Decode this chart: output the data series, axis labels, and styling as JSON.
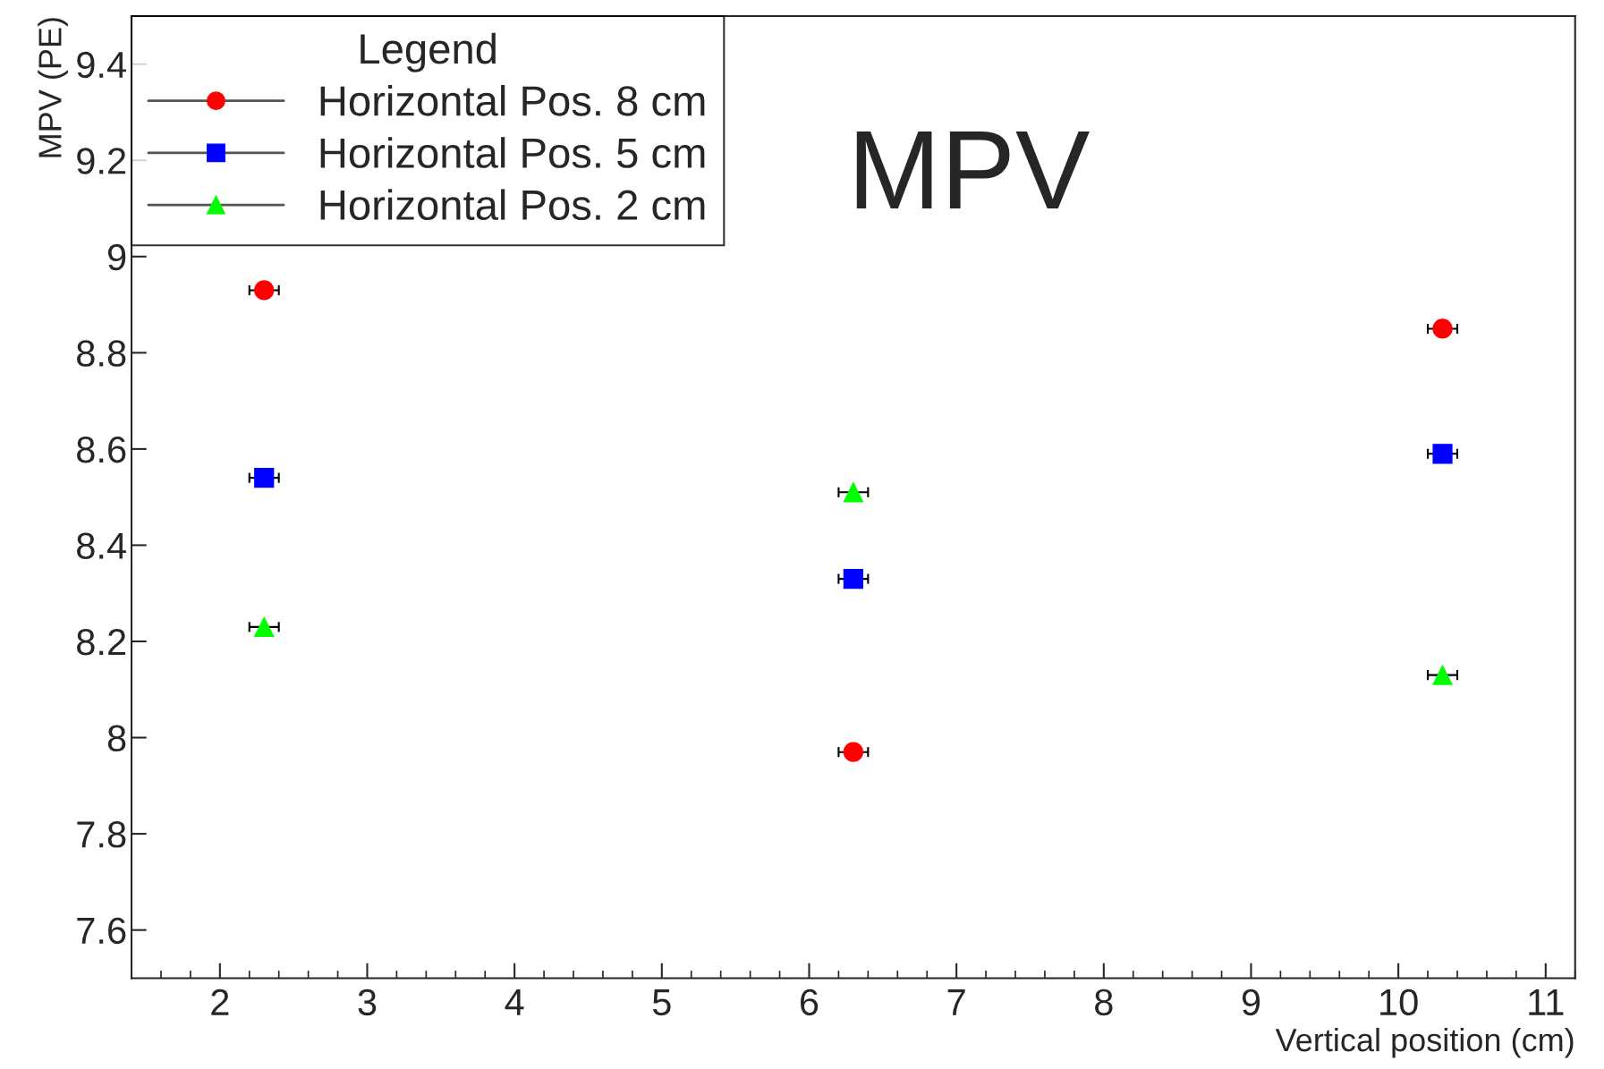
{
  "chart_data": {
    "type": "scatter",
    "xlabel": "Vertical position (cm)",
    "ylabel": "MPV (PE)",
    "legend_title": "Legend",
    "annotations": [
      "MPV"
    ],
    "xlim": [
      1.4,
      11.2
    ],
    "ylim": [
      7.5,
      9.5
    ],
    "xticks": [
      2,
      3,
      4,
      5,
      6,
      7,
      8,
      9,
      10,
      11
    ],
    "yticks": [
      7.6,
      7.8,
      8,
      8.2,
      8.4,
      8.6,
      8.8,
      9,
      9.2,
      9.4
    ],
    "legend": "top left",
    "grid": false,
    "x": [
      2.3,
      6.3,
      10.3
    ],
    "series": [
      {
        "name": "Horizontal Pos. 8 cm",
        "color": "#ff0000",
        "marker": "circle",
        "values": [
          8.93,
          7.97,
          8.85
        ],
        "xerrors": [
          0.1,
          0.1,
          0.1
        ]
      },
      {
        "name": "Horizontal Pos. 5 cm",
        "color": "#0000ff",
        "marker": "square",
        "values": [
          8.54,
          8.33,
          8.59
        ],
        "xerrors": [
          0.1,
          0.1,
          0.1
        ]
      },
      {
        "name": "Horizontal Pos. 2 cm",
        "color": "#00ff00",
        "marker": "triangle",
        "values": [
          8.23,
          8.51,
          8.13
        ],
        "xerrors": [
          0.1,
          0.1,
          0.1
        ]
      }
    ]
  }
}
